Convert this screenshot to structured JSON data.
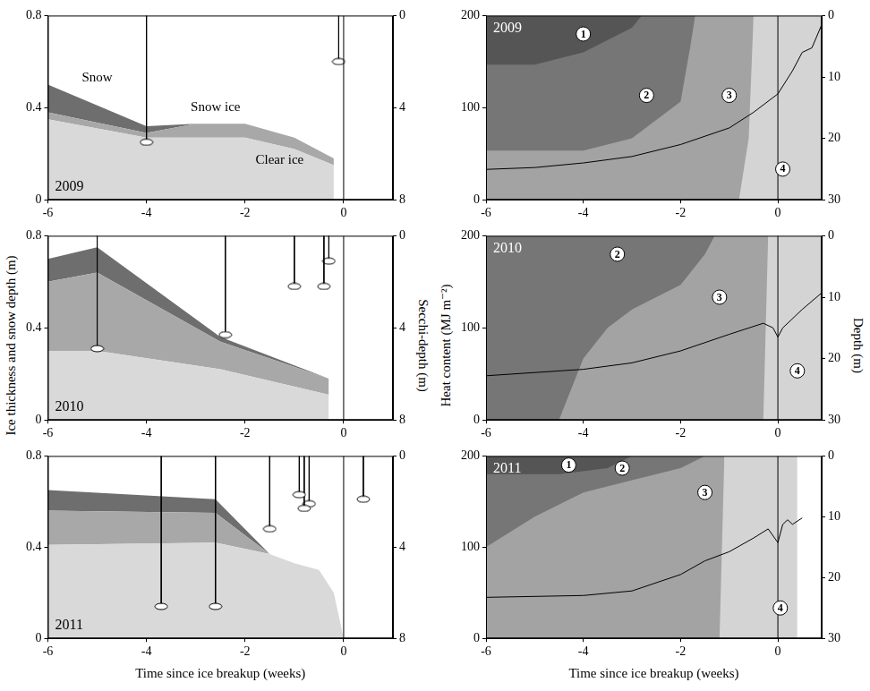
{
  "chart_data": [
    {
      "type": "area",
      "title": "2009",
      "stacked": true,
      "x": [
        -6,
        -4,
        -3,
        -2,
        -1,
        -0.2
      ],
      "series": [
        {
          "color": "#d9d9d9",
          "values": [
            0.35,
            0.27,
            0.27,
            0.27,
            0.22,
            0.15
          ]
        },
        {
          "color": "#a8a8a8",
          "values": [
            0.03,
            0.02,
            0.06,
            0.06,
            0.05,
            0.03
          ]
        },
        {
          "color": "#6e6e6e",
          "values": [
            0.12,
            0.03,
            0,
            0,
            0,
            0
          ]
        }
      ],
      "annotations": [
        {
          "text": "Snow",
          "x": -5.0,
          "y": 0.53
        },
        {
          "text": "Snow ice",
          "x": -2.6,
          "y": 0.4
        },
        {
          "text": "Clear ice",
          "x": -1.3,
          "y": 0.17
        }
      ],
      "secchi": {
        "x": [
          -4,
          -0.1
        ],
        "depth": [
          5.5,
          2.0
        ]
      },
      "breakup_x": 0,
      "xlim": [
        -6,
        1
      ],
      "xticks": [
        -6,
        -4,
        -2,
        0
      ],
      "ylim": [
        0,
        0.8
      ],
      "yticks": [
        0,
        0.4,
        0.8
      ],
      "y2lim": [
        8,
        0
      ],
      "y2ticks": [
        0,
        4,
        8
      ]
    },
    {
      "type": "area",
      "title": "2010",
      "stacked": true,
      "x": [
        -6,
        -5,
        -2.5,
        -0.3
      ],
      "series": [
        {
          "color": "#d9d9d9",
          "values": [
            0.3,
            0.3,
            0.22,
            0.11
          ]
        },
        {
          "color": "#a8a8a8",
          "values": [
            0.3,
            0.34,
            0.12,
            0.07
          ]
        },
        {
          "color": "#6e6e6e",
          "values": [
            0.1,
            0.11,
            0.02,
            0
          ]
        }
      ],
      "secchi": {
        "x": [
          -5,
          -2.4,
          -1,
          -0.4,
          -0.3
        ],
        "depth": [
          4.9,
          4.3,
          2.2,
          2.2,
          1.1
        ]
      },
      "breakup_x": 0,
      "ylabel": "Ice thickness and snow depth (m)",
      "y2label": "Secchi-depth (m)",
      "xlim": [
        -6,
        1
      ],
      "xticks": [
        -6,
        -4,
        -2,
        0
      ],
      "ylim": [
        0,
        0.8
      ],
      "yticks": [
        0,
        0.4,
        0.8
      ],
      "y2lim": [
        8,
        0
      ],
      "y2ticks": [
        0,
        4,
        8
      ]
    },
    {
      "type": "area",
      "title": "2011",
      "stacked": true,
      "x": [
        -6,
        -2.6,
        -1.5,
        -1,
        -0.5,
        -0.2,
        0
      ],
      "series": [
        {
          "color": "#d9d9d9",
          "values": [
            0.41,
            0.42,
            0.37,
            0.33,
            0.3,
            0.2,
            0
          ]
        },
        {
          "color": "#a8a8a8",
          "values": [
            0.15,
            0.13,
            0,
            0,
            0,
            0,
            0
          ]
        },
        {
          "color": "#6e6e6e",
          "values": [
            0.09,
            0.06,
            0,
            0,
            0,
            0,
            0
          ]
        }
      ],
      "secchi": {
        "x": [
          -3.7,
          -2.6,
          -1.5,
          -0.9,
          -0.8,
          -0.7,
          0.4
        ],
        "depth": [
          6.6,
          6.6,
          3.2,
          1.7,
          2.3,
          2.1,
          1.9
        ]
      },
      "breakup_x": 0,
      "xlabel": "Time since ice breakup (weeks)",
      "xlim": [
        -6,
        1
      ],
      "xticks": [
        -6,
        -4,
        -2,
        0
      ],
      "ylim": [
        0,
        0.8
      ],
      "yticks": [
        0,
        0.4,
        0.8
      ],
      "y2lim": [
        8,
        0
      ],
      "y2ticks": [
        0,
        4,
        8
      ]
    },
    {
      "type": "line",
      "title": "2009",
      "color": "#000000",
      "x": [
        -6,
        -5,
        -4,
        -3,
        -2,
        -1,
        -0.5,
        0,
        0.3,
        0.5,
        0.7,
        0.9
      ],
      "values": [
        33,
        35,
        40,
        47,
        60,
        78,
        95,
        115,
        140,
        160,
        165,
        190
      ],
      "zones": [
        {
          "label": "4",
          "label_x": 0.1,
          "label_depth": 25,
          "color": "#d4d4d4",
          "x": [
            -6,
            0.9
          ],
          "depth": [
            30,
            30
          ]
        },
        {
          "label": "3",
          "label_x": -1,
          "label_depth": 13,
          "color": "#a3a3a3",
          "x": [
            -6,
            -0.8,
            -0.6,
            -0.5
          ],
          "depth": [
            30,
            30,
            20,
            0
          ]
        },
        {
          "label": "2",
          "label_x": -2.7,
          "label_depth": 13,
          "color": "#767676",
          "x": [
            -6,
            -4,
            -3,
            -2,
            -1.8,
            -1.7
          ],
          "depth": [
            22,
            22,
            20,
            14,
            5,
            0
          ]
        },
        {
          "label": "1",
          "label_x": -4,
          "label_depth": 3,
          "color": "#555555",
          "x": [
            -6,
            -5,
            -4,
            -3.5,
            -3,
            -2.8
          ],
          "depth": [
            8,
            8,
            6,
            4,
            2,
            0
          ]
        }
      ],
      "breakup_x": 0,
      "xlim": [
        -6,
        0.9
      ],
      "xticks": [
        -6,
        -4,
        -2,
        0
      ],
      "ylim": [
        0,
        200
      ],
      "yticks": [
        0,
        100,
        200
      ],
      "y2lim": [
        30,
        0
      ],
      "y2ticks": [
        0,
        10,
        20,
        30
      ]
    },
    {
      "type": "line",
      "title": "2010",
      "color": "#000000",
      "x": [
        -6,
        -4,
        -3,
        -2,
        -1,
        -0.3,
        -0.1,
        0,
        0.1,
        0.5,
        0.9
      ],
      "values": [
        48,
        55,
        62,
        75,
        93,
        105,
        100,
        90,
        100,
        120,
        138
      ],
      "zones": [
        {
          "label": "4",
          "label_x": 0.4,
          "label_depth": 22,
          "color": "#d4d4d4",
          "x": [
            -6,
            0.9
          ],
          "depth": [
            30,
            30
          ]
        },
        {
          "label": "3",
          "label_x": -1.2,
          "label_depth": 10,
          "color": "#a3a3a3",
          "x": [
            -6,
            -0.3,
            -0.2
          ],
          "depth": [
            30,
            30,
            0
          ]
        },
        {
          "label": "2",
          "label_x": -3.3,
          "label_depth": 3,
          "color": "#767676",
          "x": [
            -6,
            -4.5,
            -4,
            -3.5,
            -3,
            -2,
            -1.5,
            -1.3
          ],
          "depth": [
            30,
            30,
            20,
            15,
            12,
            8,
            3,
            0
          ]
        }
      ],
      "breakup_x": 0,
      "ylabel": "Heat content (MJ m⁻²)",
      "y2label": "Depth (m)",
      "xlim": [
        -6,
        0.9
      ],
      "xticks": [
        -6,
        -4,
        -2,
        0
      ],
      "ylim": [
        0,
        200
      ],
      "yticks": [
        0,
        100,
        200
      ],
      "y2lim": [
        30,
        0
      ],
      "y2ticks": [
        0,
        10,
        20,
        30
      ]
    },
    {
      "type": "line",
      "title": "2011",
      "color": "#000000",
      "x": [
        -6,
        -4,
        -3,
        -2,
        -1.5,
        -1,
        -0.5,
        -0.2,
        0,
        0.1,
        0.2,
        0.3,
        0.5
      ],
      "values": [
        45,
        47,
        52,
        70,
        85,
        95,
        110,
        120,
        105,
        125,
        130,
        125,
        132
      ],
      "zones": [
        {
          "label": "4",
          "label_x": 0.05,
          "label_depth": 25,
          "color": "#d4d4d4",
          "x": [
            -6,
            0.4
          ],
          "depth": [
            30,
            30
          ]
        },
        {
          "label": "3",
          "label_x": -1.5,
          "label_depth": 6,
          "color": "#a3a3a3",
          "x": [
            -6,
            -1.2,
            -1.1
          ],
          "depth": [
            30,
            30,
            0
          ]
        },
        {
          "label": "2",
          "label_x": -3.2,
          "label_depth": 2,
          "color": "#767676",
          "x": [
            -6,
            -5,
            -4.5,
            -4,
            -3,
            -2,
            -1.5
          ],
          "depth": [
            15,
            10,
            8,
            6,
            4,
            2,
            0
          ]
        },
        {
          "label": "1",
          "label_x": -4.3,
          "label_depth": 1.5,
          "color": "#555555",
          "x": [
            -6,
            -4.5,
            -3.5,
            -3
          ],
          "depth": [
            3,
            3,
            2,
            0
          ]
        }
      ],
      "breakup_x": 0,
      "xlabel": "Time since ice breakup (weeks)",
      "xlim": [
        -6,
        0.9
      ],
      "xticks": [
        -6,
        -4,
        -2,
        0
      ],
      "ylim": [
        0,
        200
      ],
      "yticks": [
        0,
        100,
        200
      ],
      "y2lim": [
        30,
        0
      ],
      "y2ticks": [
        0,
        10,
        20,
        30
      ]
    }
  ]
}
